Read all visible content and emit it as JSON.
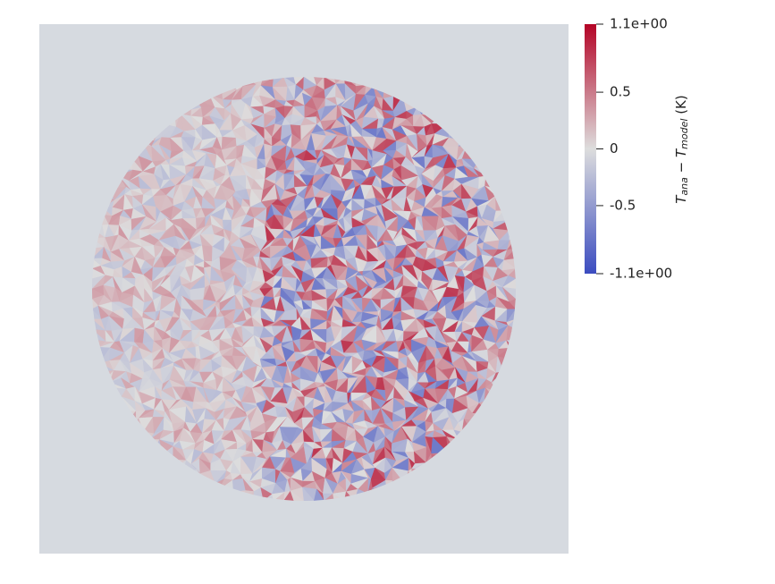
{
  "chart_data": {
    "type": "mesh",
    "colorbar_label": [
      "T",
      "ana",
      " − T",
      "model",
      " (K)"
    ],
    "clim": [
      -1.1,
      1.1
    ],
    "colormap": [
      "#3b4cc0",
      "#dddddd",
      "#b40426"
    ],
    "background": "#d6dae0",
    "ticks": [
      {
        "value": 1.1,
        "label": "1.1e+00"
      },
      0.5,
      0,
      -0.5,
      {
        "value": -1.1,
        "label": "-1.1e+00"
      }
    ]
  }
}
